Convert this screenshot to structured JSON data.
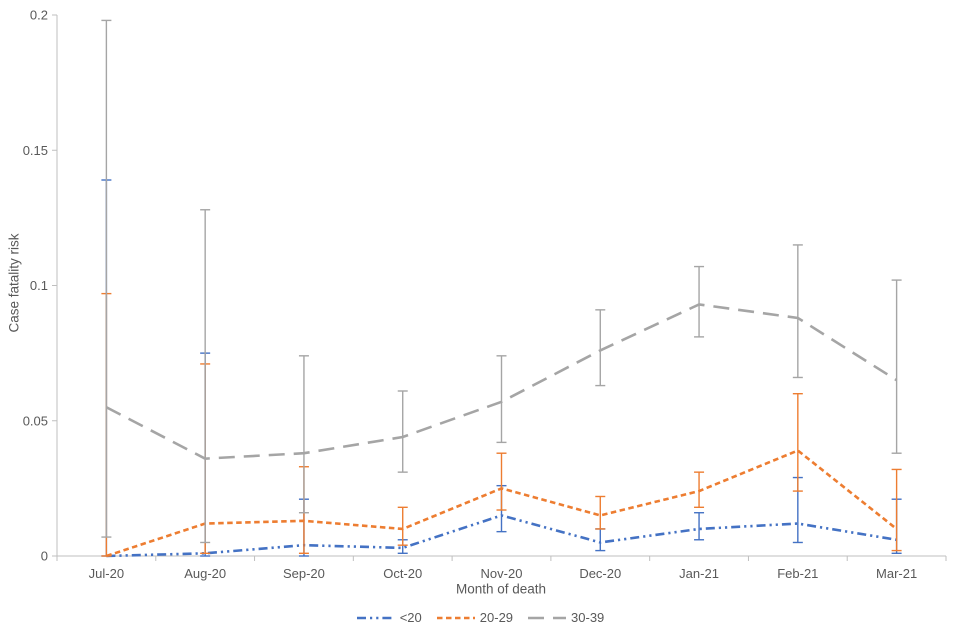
{
  "page": {
    "background": "#ffffff",
    "axis_color": "#bfbfbf",
    "text_color": "#595959"
  },
  "chart_data": {
    "type": "line",
    "title": "",
    "xlabel": "Month of death",
    "ylabel": "Case fatality risk",
    "categories": [
      "Jul-20",
      "Aug-20",
      "Sep-20",
      "Oct-20",
      "Nov-20",
      "Dec-20",
      "Jan-21",
      "Feb-21",
      "Mar-21"
    ],
    "y_ticks": [
      "0",
      "0.05",
      "0.1",
      "0.15",
      "0.2"
    ],
    "ylim": [
      0,
      0.2
    ],
    "grid": false,
    "legend_position": "bottom",
    "error_bars": true,
    "series": [
      {
        "name": "<20",
        "color": "#4472C4",
        "dash": "long-dash-dot-dot",
        "values": [
          0.0,
          0.001,
          0.004,
          0.003,
          0.015,
          0.005,
          0.01,
          0.012,
          0.006
        ],
        "ci_low": [
          0.0,
          0.0,
          0.0,
          0.001,
          0.009,
          0.002,
          0.006,
          0.005,
          0.001
        ],
        "ci_high": [
          0.139,
          0.075,
          0.021,
          0.006,
          0.026,
          0.01,
          0.016,
          0.029,
          0.021
        ]
      },
      {
        "name": "20-29",
        "color": "#ED7D31",
        "dash": "dash",
        "values": [
          0.0,
          0.012,
          0.013,
          0.01,
          0.025,
          0.015,
          0.024,
          0.039,
          0.01
        ],
        "ci_low": [
          0.0,
          0.001,
          0.001,
          0.004,
          0.017,
          0.01,
          0.018,
          0.024,
          0.002
        ],
        "ci_high": [
          0.097,
          0.071,
          0.033,
          0.018,
          0.038,
          0.022,
          0.031,
          0.06,
          0.032
        ]
      },
      {
        "name": "30-39",
        "color": "#A5A5A5",
        "dash": "long-dash",
        "values": [
          0.055,
          0.036,
          0.038,
          0.044,
          0.057,
          0.076,
          0.093,
          0.088,
          0.065
        ],
        "ci_low": [
          0.007,
          0.005,
          0.016,
          0.031,
          0.042,
          0.063,
          0.081,
          0.066,
          0.038
        ],
        "ci_high": [
          0.198,
          0.128,
          0.074,
          0.061,
          0.074,
          0.091,
          0.107,
          0.115,
          0.102
        ]
      }
    ]
  }
}
